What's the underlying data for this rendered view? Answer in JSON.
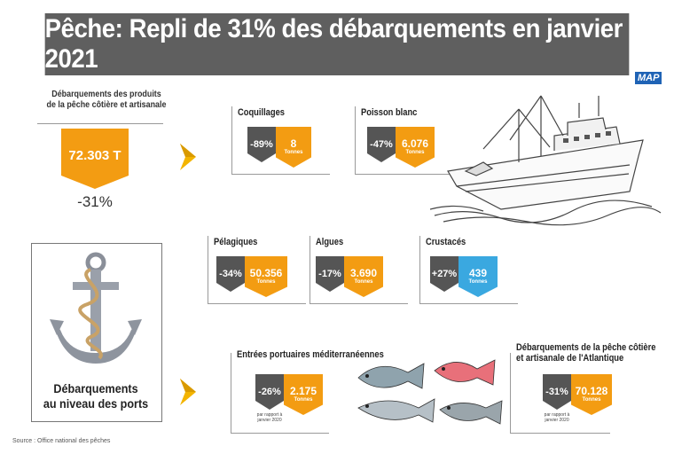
{
  "title": "Pêche: Repli de 31% des débarquements en janvier 2021",
  "logo": "MAP",
  "left_panel": {
    "header_line1": "Débarquements des produits",
    "header_line2": "de la pêche côtière et artisanale",
    "total": "72.303 T",
    "change": "-31%"
  },
  "ports_box": {
    "line1": "Débarquements",
    "line2": "au niveau des ports"
  },
  "cards": [
    {
      "label": "Coquillages",
      "pct": "-89%",
      "value": "8",
      "unit": "Tonnes"
    },
    {
      "label": "Poisson blanc",
      "pct": "-47%",
      "value": "6.076",
      "unit": "Tonnes"
    },
    {
      "label": "Pélagiques",
      "pct": "-34%",
      "value": "50.356",
      "unit": "Tonnes"
    },
    {
      "label": "Algues",
      "pct": "-17%",
      "value": "3.690",
      "unit": "Tonnes"
    },
    {
      "label": "Crustacés",
      "pct": "+27%",
      "value": "439",
      "unit": "Tonnes"
    }
  ],
  "ports": [
    {
      "label": "Entrées portuaires méditerranéennes",
      "pct": "-26%",
      "value": "2.175",
      "unit": "Tonnes",
      "note": "par rapport à janvier 2020"
    },
    {
      "label_line1": "Débarquements de la pêche côtière",
      "label_line2": "et artisanale de l'Atlantique",
      "pct": "-31%",
      "value": "70.128",
      "unit": "Tonnes",
      "note": "par rapport à janvier 2020"
    }
  ],
  "source": "Source : Office national des pêches",
  "colors": {
    "orange": "#f39c12",
    "gray": "#555555",
    "blue": "#3aa8e0",
    "title_bg": "#5f5f5f"
  }
}
